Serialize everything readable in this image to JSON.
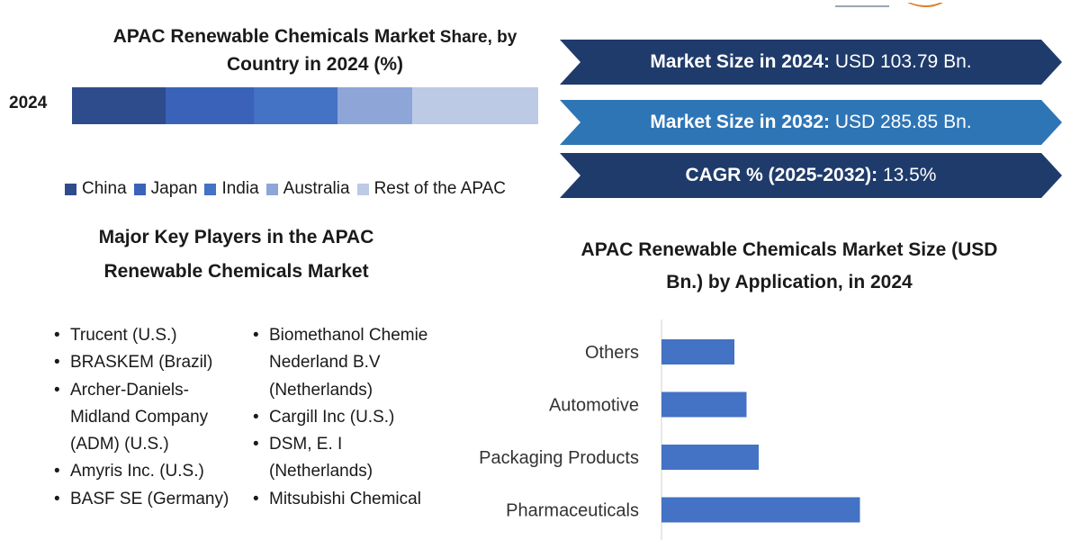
{
  "colors": {
    "china": "#2e4c8c",
    "japan": "#3a62b8",
    "india": "#4472c4",
    "australia": "#8ea5d8",
    "rest": "#bccae6",
    "banner_dark": "#1f3b6b",
    "banner_mid": "#2e75b6",
    "bar": "#4472c4"
  },
  "stats": {
    "size_2024_label": "Market Size in 2024:",
    "size_2024_value": " USD 103.79 Bn.",
    "size_2032_label": "Market Size in 2032:",
    "size_2032_value": " USD 285.85 Bn.",
    "cagr_label": "CAGR % (2025-2032):",
    "cagr_value": " 13.5%"
  },
  "key_players": {
    "title_line1": "Major Key Players in the APAC",
    "title_line2": "Renewable Chemicals Market",
    "left": [
      "Trucent (U.S.)",
      "BRASKEM (Brazil)",
      "Archer-Daniels-Midland Company (ADM) (U.S.)",
      "Amyris Inc. (U.S.)",
      "BASF SE (Germany)"
    ],
    "right": [
      "Biomethanol Chemie Nederland B.V (Netherlands)",
      "Cargill Inc (U.S.)",
      "DSM, E. I (Netherlands)",
      "Mitsubishi Chemical"
    ]
  },
  "chart_data": [
    {
      "type": "bar",
      "orientation": "horizontal-stacked",
      "title_main": "APAC Renewable Chemicals Market",
      "title_small": " Share, by",
      "title_line2": "Country in 2024 (%)",
      "categories": [
        "2024"
      ],
      "series": [
        {
          "name": "China",
          "values": [
            20
          ]
        },
        {
          "name": "Japan",
          "values": [
            19
          ]
        },
        {
          "name": "India",
          "values": [
            18
          ]
        },
        {
          "name": "Australia",
          "values": [
            16
          ]
        },
        {
          "name": "Rest of the APAC",
          "values": [
            27
          ]
        }
      ],
      "legend": "bottom"
    },
    {
      "type": "bar",
      "orientation": "horizontal",
      "title_line1": "APAC Renewable Chemicals Market Size (USD",
      "title_line2": "Bn.) by Application, in 2024",
      "categories": [
        "Others",
        "Automotive",
        "Packaging Products",
        "Pharmaceuticals"
      ],
      "values": [
        9,
        10.5,
        12,
        24.5
      ],
      "xlim": [
        0,
        50
      ]
    }
  ]
}
